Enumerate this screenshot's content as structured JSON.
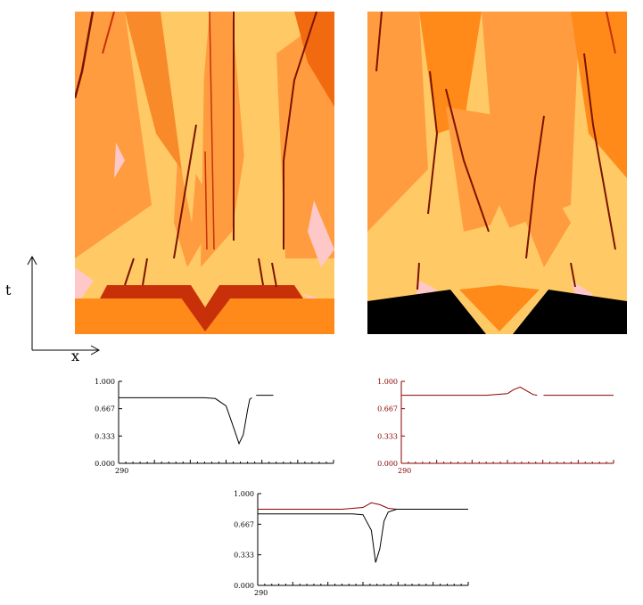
{
  "colors": {
    "pale_orange": "#ffca66",
    "mid_orange": "#ff9c3f",
    "orange": "#ff8a1a",
    "deep_orange": "#f26a10",
    "red_orange": "#c8300a",
    "dark_red": "#7a1400",
    "pink": "#ffc8c8",
    "black": "#000000",
    "plot_black": "#000000",
    "plot_red": "#8a0000"
  },
  "axes_sketch": {
    "t_label": "t",
    "x_label": "x"
  },
  "chart_data": [
    {
      "type": "line",
      "panel": "lower-left",
      "xlim": [
        290,
        390
      ],
      "ylim": [
        0.0,
        1.0
      ],
      "y_ticks": [
        "0.000",
        "0.333",
        "0.667",
        "1.000"
      ],
      "x_tick_labels": [
        "290"
      ],
      "grid": false,
      "series": [
        {
          "color": "plot_black",
          "x": [
            290,
            330,
            335,
            340,
            344,
            346,
            348,
            350,
            351,
            352
          ],
          "y": [
            0.8,
            0.8,
            0.79,
            0.7,
            0.4,
            0.24,
            0.35,
            0.65,
            0.78,
            0.8
          ],
          "x2": [
            354,
            362
          ],
          "y2": [
            0.83,
            0.83
          ]
        }
      ]
    },
    {
      "type": "line",
      "panel": "lower-right",
      "xlim": [
        290,
        390
      ],
      "ylim": [
        0.0,
        1.0
      ],
      "y_ticks": [
        "0.000",
        "0.333",
        "0.667",
        "1.000"
      ],
      "x_tick_labels": [
        "290"
      ],
      "grid": false,
      "series": [
        {
          "color": "plot_red",
          "x": [
            290,
            330,
            340,
            343,
            346,
            348,
            352,
            354
          ],
          "y": [
            0.83,
            0.83,
            0.85,
            0.9,
            0.93,
            0.9,
            0.84,
            0.83
          ],
          "x2": [
            357,
            390
          ],
          "y2": [
            0.83,
            0.83
          ]
        }
      ]
    },
    {
      "type": "line",
      "panel": "bottom-center",
      "xlim": [
        290,
        390
      ],
      "ylim": [
        0.0,
        1.0
      ],
      "y_ticks": [
        "0.000",
        "0.333",
        "0.667",
        "1.000"
      ],
      "x_tick_labels": [
        "290"
      ],
      "grid": false,
      "series": [
        {
          "color": "plot_red",
          "x": [
            290,
            330,
            340,
            344,
            348,
            352,
            356,
            390
          ],
          "y": [
            0.83,
            0.83,
            0.85,
            0.9,
            0.88,
            0.84,
            0.83,
            0.83
          ]
        },
        {
          "color": "plot_black",
          "x": [
            290,
            335,
            340,
            344,
            346,
            348,
            350,
            352,
            356,
            390
          ],
          "y": [
            0.78,
            0.78,
            0.77,
            0.6,
            0.25,
            0.4,
            0.7,
            0.8,
            0.83,
            0.83
          ]
        }
      ]
    }
  ]
}
